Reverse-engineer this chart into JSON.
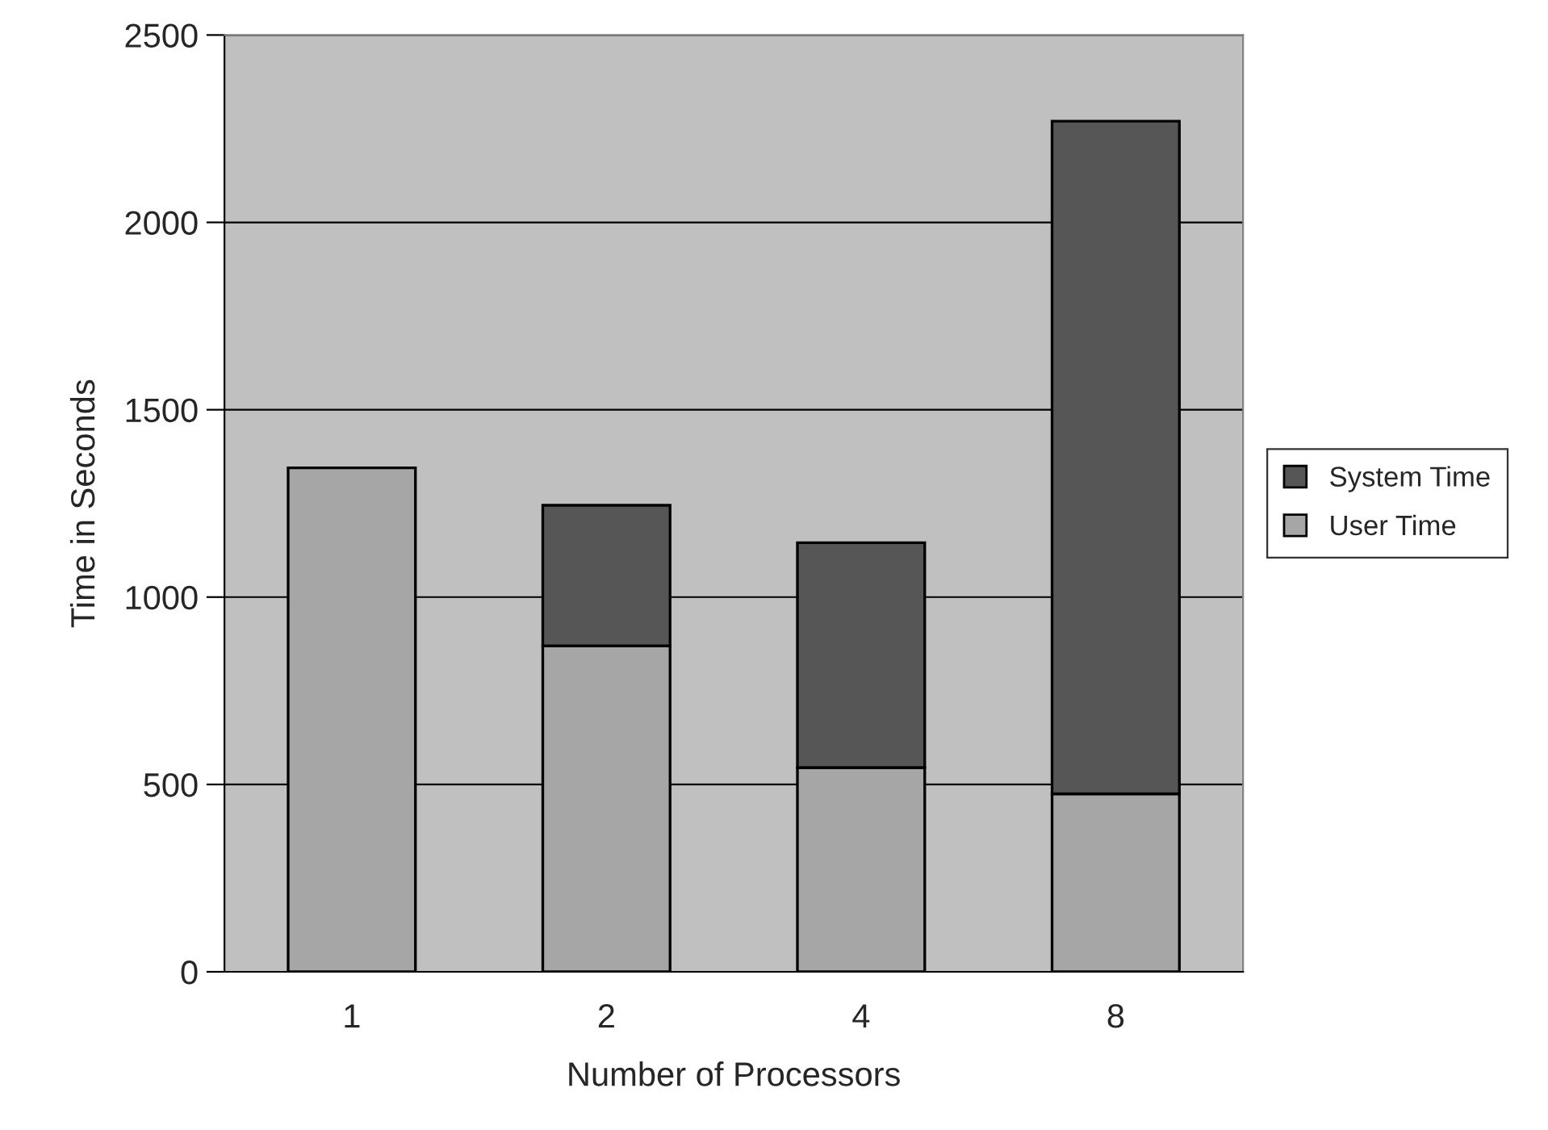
{
  "chart_data": {
    "type": "bar",
    "stacked": true,
    "xlabel": "Number of Processors",
    "ylabel": "Time in Seconds",
    "categories": [
      "1",
      "2",
      "4",
      "8"
    ],
    "series": [
      {
        "name": "User Time",
        "color": "#a6a6a6",
        "values": [
          1345,
          870,
          545,
          475
        ]
      },
      {
        "name": "System Time",
        "color": "#565656",
        "values": [
          null,
          375,
          600,
          1795
        ]
      }
    ],
    "ylim": [
      0,
      2500
    ],
    "yticks": [
      0,
      500,
      1000,
      1500,
      2000,
      2500
    ],
    "grid": "y",
    "legend": "right"
  }
}
